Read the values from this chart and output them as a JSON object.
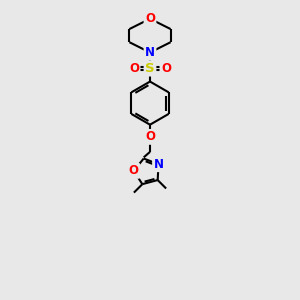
{
  "bg_color": "#e8e8e8",
  "bond_color": "#000000",
  "atom_colors": {
    "O": "#ff0000",
    "N": "#0000ff",
    "S": "#cccc00",
    "C": "#000000"
  },
  "line_width": 1.5,
  "font_size": 8.5
}
